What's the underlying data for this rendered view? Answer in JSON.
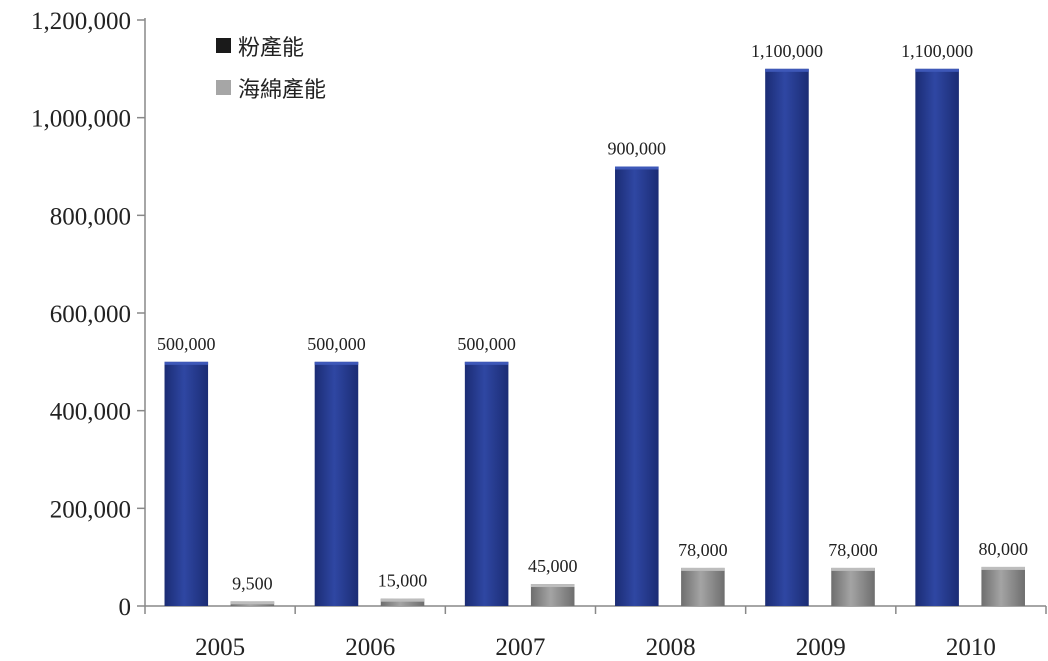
{
  "chart_data": {
    "type": "bar",
    "categories": [
      "2005",
      "2006",
      "2007",
      "2008",
      "2009",
      "2010"
    ],
    "series": [
      {
        "name": "粉產能",
        "values": [
          500000,
          500000,
          500000,
          900000,
          1100000,
          1100000
        ],
        "labels": [
          "500,000",
          "500,000",
          "500,000",
          "900,000",
          "1,100,000",
          "1,100,000"
        ],
        "color": "#24388a",
        "legend_color": "#1a1a1a"
      },
      {
        "name": "海綿產能",
        "values": [
          9500,
          15000,
          45000,
          78000,
          78000,
          80000
        ],
        "labels": [
          "9,500",
          "15,000",
          "45,000",
          "78,000",
          "78,000",
          "80,000"
        ],
        "color": "#8e8e8e",
        "legend_color": "#a6a6a6"
      }
    ],
    "y_ticks": [
      "0",
      "200,000",
      "400,000",
      "600,000",
      "800,000",
      "1,000,000",
      "1,200,000"
    ],
    "ylim": [
      0,
      1200000
    ],
    "legend_position": "top-left",
    "grid": false
  }
}
